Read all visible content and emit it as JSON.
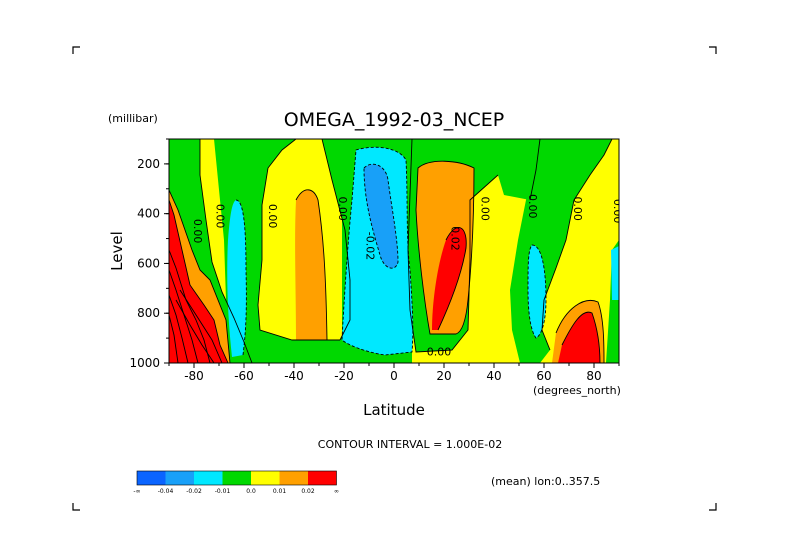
{
  "chart_data": {
    "type": "heatmap",
    "title": "OMEGA_1992-03_NCEP",
    "xlabel": "Latitude",
    "x_units": "(degrees_north)",
    "ylabel": "Level",
    "y_units": "(millibar)",
    "xlim": [
      -90,
      90
    ],
    "ylim": [
      1000,
      100
    ],
    "x_ticks": [
      "-80",
      "-60",
      "-40",
      "-20",
      "0",
      "20",
      "40",
      "60",
      "80"
    ],
    "x_tick_values": [
      -80,
      -60,
      -40,
      -20,
      0,
      20,
      40,
      60,
      80
    ],
    "y_ticks": [
      "200",
      "400",
      "600",
      "800",
      "1000"
    ],
    "y_tick_values": [
      200,
      400,
      600,
      800,
      1000
    ],
    "contour_interval_text": "CONTOUR INTERVAL = 1.000E-02",
    "mean_text": "(mean) lon:0..357.5",
    "contour_labels": [
      {
        "text": "0.00",
        "lat": -80,
        "lev": 470
      },
      {
        "text": "0.00",
        "lat": -71,
        "lev": 410
      },
      {
        "text": "0.00",
        "lat": -50,
        "lev": 410
      },
      {
        "text": "0.00",
        "lat": -22,
        "lev": 380
      },
      {
        "text": "-0.02",
        "lat": -11,
        "lev": 530
      },
      {
        "text": "0.02",
        "lat": 23,
        "lev": 500
      },
      {
        "text": "0.00",
        "lat": 35,
        "lev": 380
      },
      {
        "text": "0.00",
        "lat": 54,
        "lev": 370
      },
      {
        "text": "0.00",
        "lat": 72,
        "lev": 380
      },
      {
        "text": "0.00",
        "lat": 88,
        "lev": 390
      },
      {
        "text": "0.00",
        "lat": 18,
        "lev": 970
      }
    ],
    "colorbar": {
      "colors": [
        "#0a64ff",
        "#18a0f8",
        "#00e8ff",
        "#00d800",
        "#ffff00",
        "#ffa000",
        "#ff0000"
      ],
      "labels": [
        "-∞",
        "-0.04",
        "-0.02",
        "-0.01",
        "0.0",
        "0.01",
        "0.02",
        "∞"
      ]
    }
  }
}
